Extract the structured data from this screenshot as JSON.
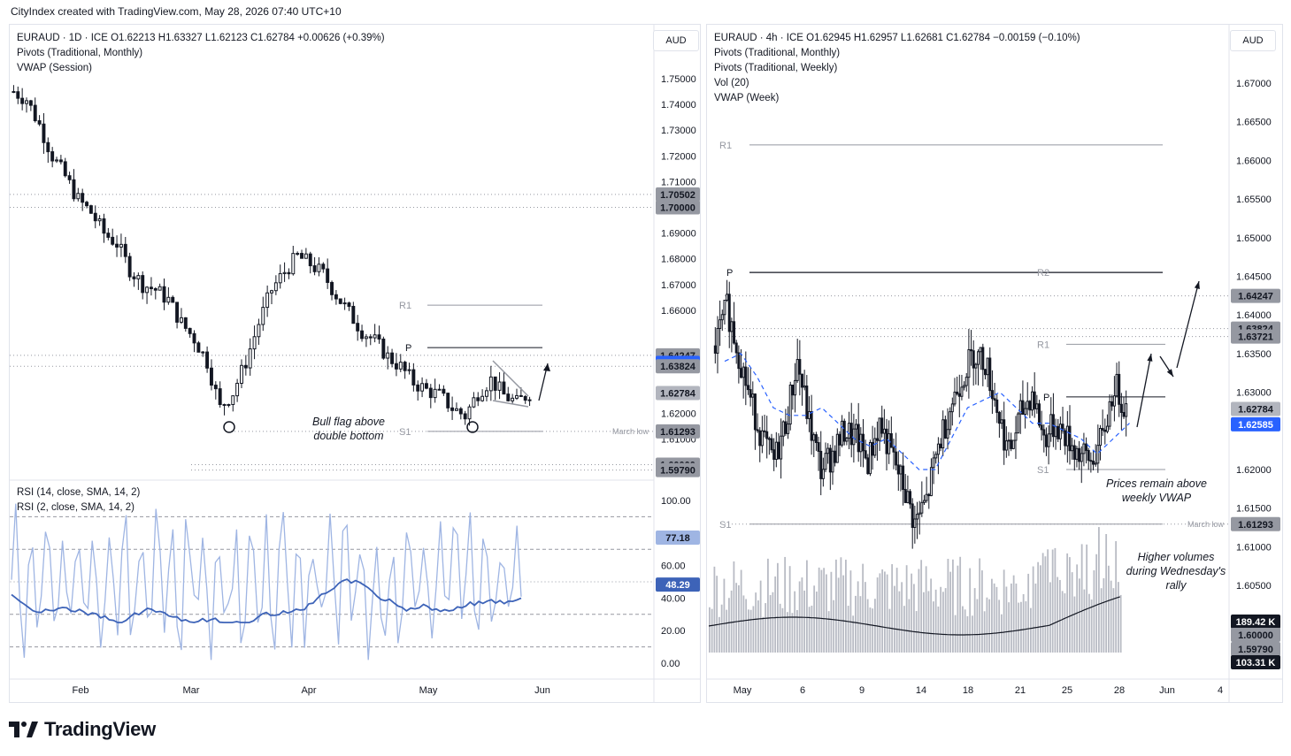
{
  "header": {
    "text": "CityIndex created with TradingView.com, May 28, 2026 07:40 UTC+10"
  },
  "brand": {
    "name": "TradingView"
  },
  "left": {
    "legend": [
      "EURAUD · 1D · ICE   O1.62213  H1.63327  L1.62123  C1.62784  +0.00626 (+0.39%)",
      "Pivots (Traditional, Monthly)",
      "VWAP (Session)"
    ],
    "currency": "AUD",
    "price_axis_labels": [
      "1.75000",
      "1.74000",
      "1.73000",
      "1.72000",
      "1.71000",
      "1.69000",
      "1.68000",
      "1.67000",
      "1.66000",
      "1.62000",
      "1.61000"
    ],
    "price_tags": [
      {
        "text": "1.70502",
        "bg": "#9598a1",
        "fg": "#131722",
        "y": 1.70502
      },
      {
        "text": "1.70000",
        "bg": "#9598a1",
        "fg": "#131722",
        "y": 1.7
      },
      {
        "text": "1.64247",
        "bg": "#9598a1",
        "fg": "#131722",
        "y": 1.64247
      },
      {
        "text": "1.63955",
        "bg": "#2962ff",
        "fg": "#ffffff",
        "y": 1.63955
      },
      {
        "text": "1.63824",
        "bg": "#9598a1",
        "fg": "#131722",
        "y": 1.63824
      },
      {
        "text": "1.62784",
        "bg": "#b2b5be",
        "fg": "#131722",
        "y": 1.62784
      },
      {
        "text": "1.61293",
        "bg": "#9598a1",
        "fg": "#131722",
        "y": 1.61293
      },
      {
        "text": "1.60000",
        "bg": "#9598a1",
        "fg": "#131722",
        "y": 1.6
      },
      {
        "text": "1.59790",
        "bg": "#9598a1",
        "fg": "#131722",
        "y": 1.5979
      }
    ],
    "pivot_labels": [
      "R1",
      "P",
      "S1"
    ],
    "march_low_label": "March low",
    "annotation": [
      "Bull flag above",
      "double bottom"
    ],
    "rsi_legend": [
      "RSI (14, close, SMA, 14, 2)",
      "RSI (2, close, SMA, 14, 2)"
    ],
    "rsi_axis_labels": [
      "100.00",
      "60.00",
      "40.00",
      "20.00",
      "0.00"
    ],
    "rsi_tags": [
      {
        "text": "77.18",
        "bg": "#9fb5e3",
        "fg": "#131722",
        "y": 77.18
      },
      {
        "text": "48.29",
        "bg": "#3d63b8",
        "fg": "#ffffff",
        "y": 48.29
      }
    ],
    "x_labels": [
      "Feb",
      "Mar",
      "Apr",
      "May",
      "Jun"
    ]
  },
  "right": {
    "legend": [
      "EURAUD · 4h · ICE   O1.62945  H1.62957  L1.62681  C1.62784  −0.00159 (−0.10%)",
      "Pivots (Traditional, Monthly)",
      "Pivots (Traditional, Weekly)",
      "Vol (20)",
      "VWAP (Week)"
    ],
    "currency": "AUD",
    "price_axis_labels": [
      "1.67000",
      "1.66500",
      "1.66000",
      "1.65500",
      "1.65000",
      "1.64500",
      "1.64000",
      "1.63500",
      "1.63000",
      "1.62000",
      "1.61500",
      "1.61000",
      "1.60500"
    ],
    "price_tags": [
      {
        "text": "1.64247",
        "bg": "#9598a1",
        "fg": "#131722",
        "y": 1.64247
      },
      {
        "text": "1.63824",
        "bg": "#9598a1",
        "fg": "#131722",
        "y": 1.63824
      },
      {
        "text": "1.63721",
        "bg": "#9598a1",
        "fg": "#131722",
        "y": 1.63721
      },
      {
        "text": "1.62784",
        "bg": "#b2b5be",
        "fg": "#131722",
        "y": 1.62784
      },
      {
        "text": "1.62585",
        "bg": "#2962ff",
        "fg": "#ffffff",
        "y": 1.62585
      },
      {
        "text": "1.61293",
        "bg": "#9598a1",
        "fg": "#131722",
        "y": 1.61293
      }
    ],
    "vol_tags": [
      {
        "text": "189.42 K",
        "bg": "#131722",
        "fg": "#ffffff"
      },
      {
        "text": "1.60000",
        "bg": "#9598a1",
        "fg": "#131722"
      },
      {
        "text": "1.59790",
        "bg": "#9598a1",
        "fg": "#131722"
      },
      {
        "text": "103.31 K",
        "bg": "#131722",
        "fg": "#ffffff"
      }
    ],
    "pivot_labels": [
      "R1",
      "P",
      "R2",
      "R1",
      "P",
      "S1",
      "S1"
    ],
    "march_low_label": "March low",
    "annotation1": [
      "Prices remain above",
      "weekly VWAP"
    ],
    "annotation2": [
      "Higher volumes",
      "during Wednesday's",
      "rally"
    ],
    "x_labels": [
      "May",
      "6",
      "9",
      "14",
      "18",
      "21",
      "25",
      "28",
      "Jun",
      "4"
    ]
  },
  "chart_data": [
    {
      "type": "candlestick",
      "title": "EURAUD · 1D · ICE",
      "ylim": [
        1.595,
        1.755
      ],
      "x_ticks": [
        "Feb",
        "Mar",
        "Apr",
        "May",
        "Jun"
      ],
      "levels": [
        {
          "name": "R1",
          "value": 1.662
        },
        {
          "name": "P",
          "value": 1.6455
        },
        {
          "name": "S1",
          "value": 1.61293
        },
        {
          "name": "March low",
          "value": 1.61293
        }
      ],
      "close_path": [
        1.745,
        1.742,
        1.732,
        1.72,
        1.712,
        1.703,
        1.698,
        1.69,
        1.686,
        1.676,
        1.67,
        1.668,
        1.664,
        1.655,
        1.649,
        1.64,
        1.622,
        1.628,
        1.64,
        1.655,
        1.668,
        1.675,
        1.681,
        1.678,
        1.674,
        1.666,
        1.659,
        1.652,
        1.648,
        1.642,
        1.638,
        1.632,
        1.629,
        1.627,
        1.622,
        1.619,
        1.628,
        1.633,
        1.627,
        1.624,
        1.628
      ]
    },
    {
      "type": "line",
      "title": "RSI (14, close, SMA, 14, 2) / RSI (2, close, SMA, 14, 2)",
      "ylim": [
        0,
        100
      ],
      "series": [
        {
          "name": "RSI (14, close, SMA, 14, 2)",
          "last": 48.29
        },
        {
          "name": "RSI (2, close, SMA, 14, 2)",
          "last": 77.18
        }
      ]
    },
    {
      "type": "candlestick",
      "title": "EURAUD · 4h · ICE",
      "ylim": [
        1.597,
        1.675
      ],
      "x_ticks": [
        "May",
        "6",
        "9",
        "14",
        "18",
        "21",
        "25",
        "28",
        "Jun",
        "4"
      ],
      "levels": [
        {
          "name": "R1 (monthly)",
          "value": 1.662
        },
        {
          "name": "P (monthly)",
          "value": 1.6455
        },
        {
          "name": "R2 (weekly)",
          "value": 1.6455
        },
        {
          "name": "R1 (weekly)",
          "value": 1.6362
        },
        {
          "name": "P (weekly)",
          "value": 1.6294
        },
        {
          "name": "S1 (weekly)",
          "value": 1.62
        },
        {
          "name": "S1 (monthly)",
          "value": 1.61293
        }
      ],
      "close_path": [
        1.636,
        1.641,
        1.635,
        1.629,
        1.624,
        1.621,
        1.626,
        1.634,
        1.626,
        1.62,
        1.622,
        1.625,
        1.624,
        1.621,
        1.626,
        1.622,
        1.618,
        1.613,
        1.616,
        1.623,
        1.628,
        1.632,
        1.635,
        1.634,
        1.628,
        1.622,
        1.627,
        1.63,
        1.624,
        1.626,
        1.624,
        1.622,
        1.621,
        1.624,
        1.631,
        1.628
      ]
    },
    {
      "type": "bar",
      "title": "Vol (20)",
      "series": [
        {
          "name": "Vol (20)",
          "last": "189.42 K"
        }
      ]
    }
  ]
}
